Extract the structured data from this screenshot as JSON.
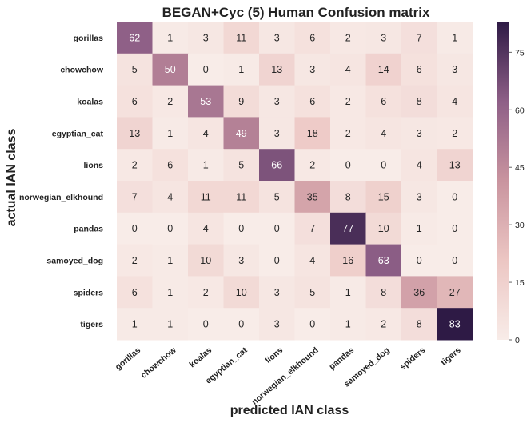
{
  "chart_data": {
    "type": "heatmap",
    "title": "BEGAN+Cyc (5) Human Confusion matrix",
    "xlabel": "predicted IAN class",
    "ylabel": "actual IAN class",
    "x_categories": [
      "gorillas",
      "chowchow",
      "koalas",
      "egyptian_cat",
      "lions",
      "norwegian_elkhound",
      "pandas",
      "samoyed_dog",
      "spiders",
      "tigers"
    ],
    "y_categories": [
      "gorillas",
      "chowchow",
      "koalas",
      "egyptian_cat",
      "lions",
      "norwegian_elkhound",
      "pandas",
      "samoyed_dog",
      "spiders",
      "tigers"
    ],
    "values": [
      [
        62,
        1,
        3,
        11,
        3,
        6,
        2,
        3,
        7,
        1
      ],
      [
        5,
        50,
        0,
        1,
        13,
        3,
        4,
        14,
        6,
        3
      ],
      [
        6,
        2,
        53,
        9,
        3,
        6,
        2,
        6,
        8,
        4
      ],
      [
        13,
        1,
        4,
        49,
        3,
        18,
        2,
        4,
        3,
        2
      ],
      [
        2,
        6,
        1,
        5,
        66,
        2,
        0,
        0,
        4,
        13
      ],
      [
        7,
        4,
        11,
        11,
        5,
        35,
        8,
        15,
        3,
        0
      ],
      [
        0,
        0,
        4,
        0,
        0,
        7,
        77,
        10,
        1,
        0
      ],
      [
        2,
        1,
        10,
        3,
        0,
        4,
        16,
        63,
        0,
        0
      ],
      [
        6,
        1,
        2,
        10,
        3,
        5,
        1,
        8,
        36,
        27
      ],
      [
        1,
        1,
        0,
        0,
        3,
        0,
        1,
        2,
        8,
        83
      ]
    ],
    "colorbar": {
      "range": [
        0,
        83
      ],
      "ticks": [
        0,
        15,
        30,
        45,
        60,
        75
      ]
    },
    "colors": {
      "low": "#f8ece8",
      "mid1": "#ecc6c3",
      "mid2": "#c9949f",
      "mid3": "#8e5f87",
      "high": "#2e1a45"
    }
  }
}
